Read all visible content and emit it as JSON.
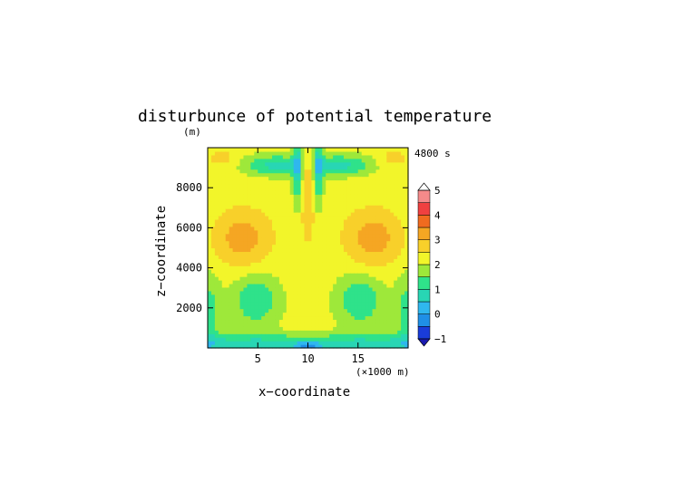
{
  "chart_data": {
    "type": "heatmap",
    "title": "disturbunce of potential temperature",
    "units_label": "(m)",
    "time_label": "4800 s",
    "xlabel": "x−coordinate",
    "ylabel": "z−coordinate",
    "x_unit_note": "(×1000 m)",
    "xlim": [
      0,
      20
    ],
    "ylim": [
      0,
      10000
    ],
    "x_ticks": [
      5,
      10,
      15
    ],
    "y_ticks": [
      2000,
      4000,
      6000,
      8000
    ],
    "colorbar": {
      "levels": [
        -1,
        -0.5,
        0,
        0.5,
        1,
        1.5,
        2,
        2.5,
        3,
        3.5,
        4,
        4.5,
        5
      ],
      "labels": [
        -1,
        0,
        1,
        2,
        3,
        4,
        5
      ],
      "colors": [
        "#1a3cd9",
        "#1f8fe6",
        "#2fb7ee",
        "#28d6b4",
        "#2fe28a",
        "#9ee83a",
        "#f2f52a",
        "#f8d02a",
        "#f5a623",
        "#f06b1f",
        "#f04040",
        "#f58a8a"
      ],
      "over_color": "#ffffff",
      "under_color": "#1a1ab0"
    }
  }
}
